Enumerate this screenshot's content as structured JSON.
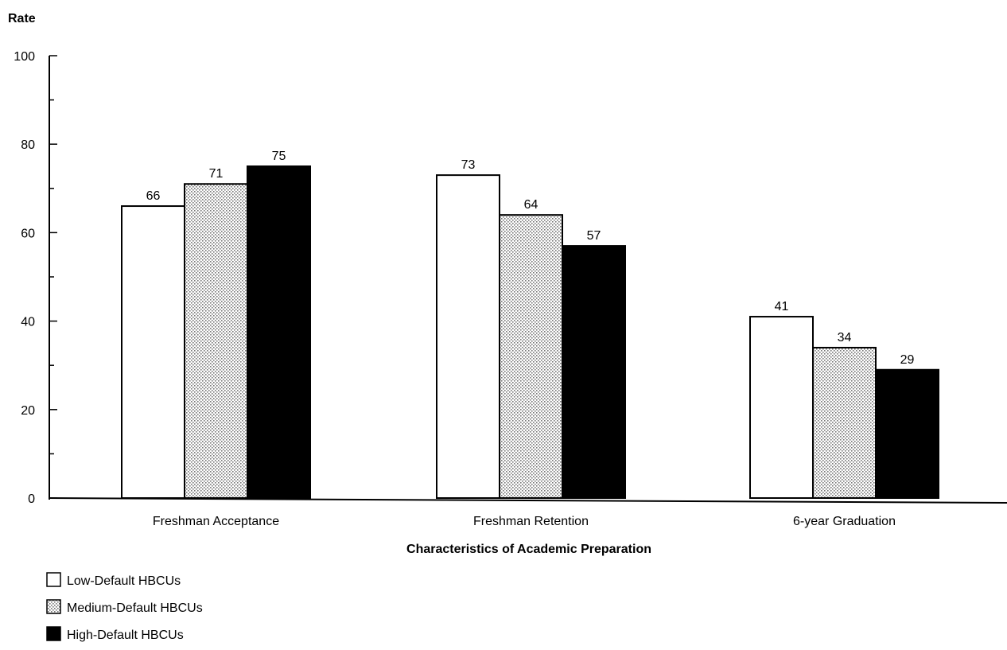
{
  "chart_data": {
    "type": "bar",
    "title": "",
    "ylabel": "Rate",
    "xlabel": "Characteristics of Academic Preparation",
    "categories": [
      "Freshman Acceptance",
      "Freshman Retention",
      "6-year Graduation"
    ],
    "series": [
      {
        "name": "Low-Default HBCUs",
        "values": [
          66,
          73,
          41
        ],
        "fill": "white"
      },
      {
        "name": "Medium-Default HBCUs",
        "values": [
          71,
          64,
          34
        ],
        "fill": "dotted"
      },
      {
        "name": "High-Default HBCUs",
        "values": [
          75,
          57,
          29
        ],
        "fill": "black"
      }
    ],
    "data_labels": [
      [
        "66",
        "73",
        "41"
      ],
      [
        "71",
        "64",
        "34"
      ],
      [
        "75",
        "57",
        "29"
      ]
    ],
    "ylim": [
      0,
      100
    ],
    "yticks": [
      0,
      20,
      40,
      60,
      80,
      100
    ],
    "grid": false,
    "legend_position": "bottom-left",
    "colors": {
      "outline": "#000000",
      "low_fill": "#ffffff",
      "medium_fill": "#d9d9d9",
      "high_fill": "#000000"
    }
  }
}
